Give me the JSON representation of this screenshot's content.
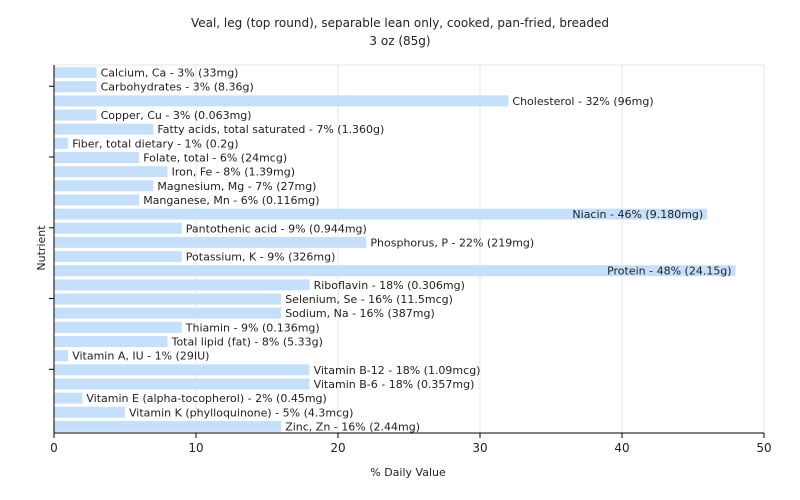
{
  "chart_data": {
    "type": "bar",
    "orientation": "horizontal",
    "title": "Veal, leg (top round), separable lean only, cooked, pan-fried, breaded",
    "subtitle": "3 oz (85g)",
    "xlabel": "% Daily Value",
    "ylabel": "Nutrient",
    "xlim": [
      0,
      50
    ],
    "xticks": [
      0,
      10,
      20,
      30,
      40,
      50
    ],
    "grid": true,
    "bar_color": "#c6e0fc",
    "categories": [
      "Calcium, Ca - 3% (33mg)",
      "Carbohydrates - 3% (8.36g)",
      "Cholesterol - 32% (96mg)",
      "Copper, Cu - 3% (0.063mg)",
      "Fatty acids, total saturated - 7% (1.360g)",
      "Fiber, total dietary - 1% (0.2g)",
      "Folate, total - 6% (24mcg)",
      "Iron, Fe - 8% (1.39mg)",
      "Magnesium, Mg - 7% (27mg)",
      "Manganese, Mn - 6% (0.116mg)",
      "Niacin - 46% (9.180mg)",
      "Pantothenic acid - 9% (0.944mg)",
      "Phosphorus, P - 22% (219mg)",
      "Potassium, K - 9% (326mg)",
      "Protein - 48% (24.15g)",
      "Riboflavin - 18% (0.306mg)",
      "Selenium, Se - 16% (11.5mcg)",
      "Sodium, Na - 16% (387mg)",
      "Thiamin - 9% (0.136mg)",
      "Total lipid (fat) - 8% (5.33g)",
      "Vitamin A, IU - 1% (29IU)",
      "Vitamin B-12 - 18% (1.09mcg)",
      "Vitamin B-6 - 18% (0.357mg)",
      "Vitamin E (alpha-tocopherol) - 2% (0.45mg)",
      "Vitamin K (phylloquinone) - 5% (4.3mcg)",
      "Zinc, Zn - 16% (2.44mg)"
    ],
    "values": [
      3,
      3,
      32,
      3,
      7,
      1,
      6,
      8,
      7,
      6,
      46,
      9,
      22,
      9,
      48,
      18,
      16,
      16,
      9,
      8,
      1,
      18,
      18,
      2,
      5,
      16
    ]
  }
}
